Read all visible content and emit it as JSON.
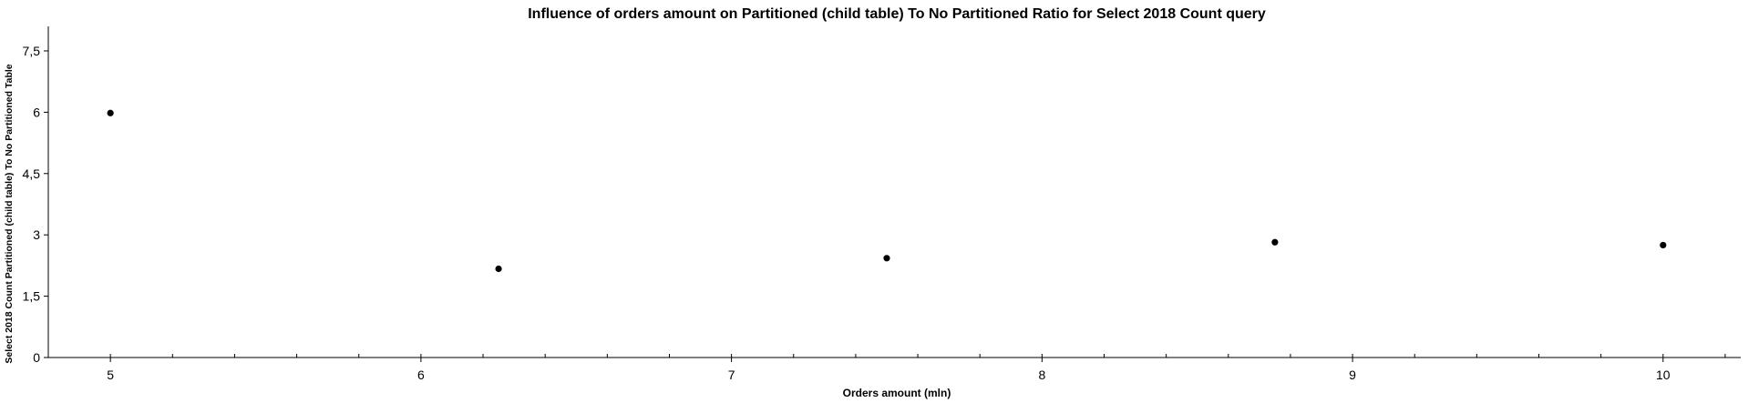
{
  "chart_data": {
    "type": "scatter",
    "title": "Influence of orders amount on Partitioned (child table) To No Partitioned Ratio for Select 2018 Count query",
    "xlabel": "Orders amount (mln)",
    "ylabel": "Select 2018 Count Partitioned (child table) To No Partitioned Table",
    "xlim": [
      4.8,
      10.25
    ],
    "ylim": [
      0,
      8.1
    ],
    "x_ticks": [
      5,
      6,
      7,
      8,
      9,
      10
    ],
    "x_tick_labels": [
      "5",
      "6",
      "7",
      "8",
      "9",
      "10"
    ],
    "x_minor_step": 0.2,
    "y_ticks": [
      0,
      1.5,
      3,
      4.5,
      6,
      7.5
    ],
    "y_tick_labels": [
      "0",
      "1,5",
      "3",
      "4,5",
      "6",
      "7,5"
    ],
    "grid": false,
    "series": [
      {
        "color": "#000000",
        "points": [
          {
            "x": 5.0,
            "y": 5.98
          },
          {
            "x": 6.25,
            "y": 2.17
          },
          {
            "x": 7.5,
            "y": 2.43
          },
          {
            "x": 8.75,
            "y": 2.82
          },
          {
            "x": 10.0,
            "y": 2.75
          }
        ]
      }
    ]
  }
}
